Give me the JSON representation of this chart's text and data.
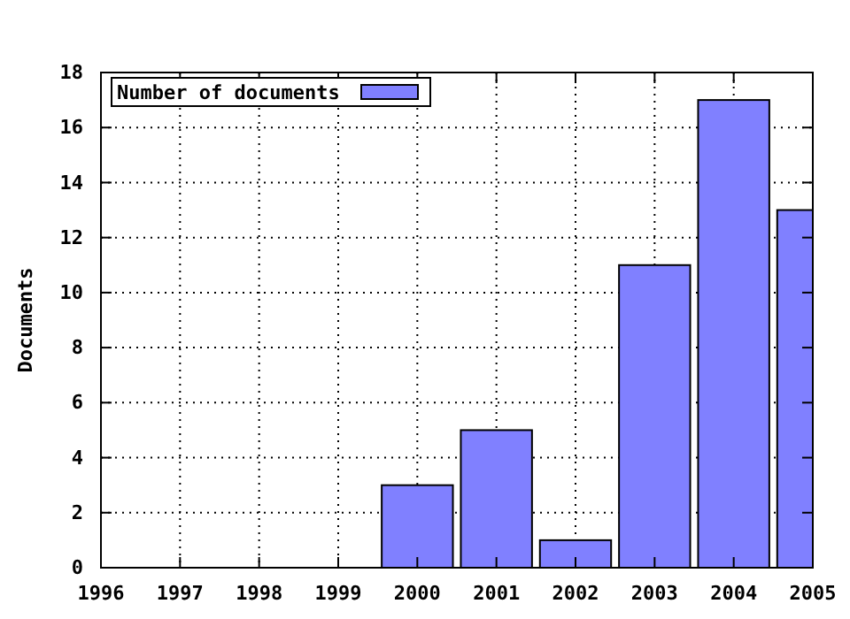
{
  "chart_data": {
    "type": "bar",
    "ylabel": "Documents",
    "x": [
      1996,
      1997,
      1998,
      1999,
      2000,
      2001,
      2002,
      2003,
      2004,
      2005
    ],
    "series": [
      {
        "name": "Number of documents",
        "color": "#8080ff",
        "values": [
          0,
          0,
          0,
          0,
          3,
          5,
          1,
          11,
          17,
          13
        ]
      }
    ],
    "xlim": [
      1996,
      2005
    ],
    "xticks": [
      1996,
      1997,
      1998,
      1999,
      2000,
      2001,
      2002,
      2003,
      2004,
      2005
    ],
    "ylim": [
      0,
      18
    ],
    "yticks": [
      0,
      2,
      4,
      6,
      8,
      10,
      12,
      14,
      16,
      18
    ],
    "grid": true,
    "legend": "top left"
  }
}
